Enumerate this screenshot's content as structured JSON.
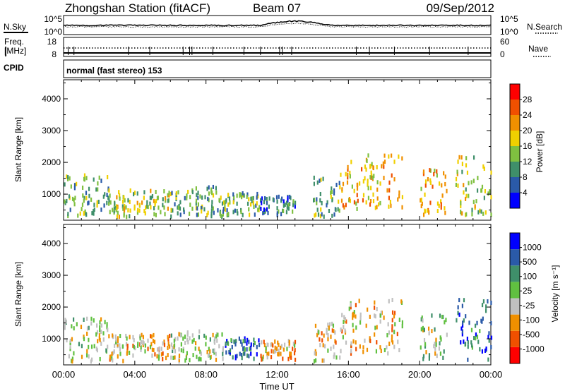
{
  "header": {
    "station": "Zhongshan Station (fitACF)",
    "beam": "Beam 07",
    "date": "09/Sep/2012"
  },
  "noise_panel": {
    "left_label": "N.Sky",
    "right_label": "N.Search",
    "left_ticks": [
      "10^5",
      "10^0"
    ],
    "right_ticks": [
      "10^5",
      "10^0"
    ]
  },
  "freq_panel": {
    "left_label_1": "Freq.",
    "left_label_2": "[MHz]",
    "right_label": "Nave",
    "left_ticks": [
      "18",
      "8"
    ],
    "right_ticks": [
      "60",
      "0"
    ]
  },
  "cpid": {
    "label": "CPID",
    "text": "normal (fast stereo) 153"
  },
  "xaxis": {
    "label": "Time UT",
    "ticks": [
      "00:00",
      "04:00",
      "08:00",
      "12:00",
      "16:00",
      "20:00",
      "00:00"
    ]
  },
  "power_panel": {
    "ylabel": "Slant Range [km]",
    "yticks": [
      "4000",
      "3000",
      "2000",
      "1000"
    ],
    "colorbar_label": "Power [dB]",
    "colorbar_ticks": [
      "28",
      "24",
      "20",
      "16",
      "12",
      "8",
      "4"
    ]
  },
  "velocity_panel": {
    "ylabel": "Slant Range [km]",
    "yticks": [
      "4000",
      "3000",
      "2000",
      "1000"
    ],
    "colorbar_label": "Velocity [m s⁻¹]",
    "colorbar_ticks": [
      "1000",
      "500",
      "100",
      "25",
      "-25",
      "-100",
      "-500",
      "-1000"
    ]
  },
  "chart_data": [
    {
      "type": "heatmap",
      "title": "Power",
      "xlabel": "Time UT",
      "ylabel": "Slant Range [km]",
      "xlim": [
        0,
        24
      ],
      "ylim": [
        180,
        4600
      ],
      "colorbar": {
        "label": "Power [dB]",
        "range": [
          0,
          32
        ]
      },
      "colors": [
        "#0000ff",
        "#2a5aa8",
        "#3f8f6a",
        "#7fc040",
        "#f0d000",
        "#f09000",
        "#f05000",
        "#ff0000"
      ],
      "scatter_regions": [
        {
          "t": [
            0.0,
            2.5
          ],
          "r": [
            350,
            1700
          ],
          "power": 14
        },
        {
          "t": [
            2.5,
            6.0
          ],
          "r": [
            350,
            1200
          ],
          "power": 16
        },
        {
          "t": [
            6.0,
            9.0
          ],
          "r": [
            350,
            1300
          ],
          "power": 14
        },
        {
          "t": [
            9.0,
            11.0
          ],
          "r": [
            400,
            1100
          ],
          "power": 12
        },
        {
          "t": [
            11.0,
            13.0
          ],
          "r": [
            400,
            1000
          ],
          "power": 8
        },
        {
          "t": [
            14.0,
            15.5
          ],
          "r": [
            350,
            1600
          ],
          "power": 14
        },
        {
          "t": [
            15.5,
            19.0
          ],
          "r": [
            600,
            2300
          ],
          "power": 22
        },
        {
          "t": [
            20.0,
            21.5
          ],
          "r": [
            400,
            1900
          ],
          "power": 20
        },
        {
          "t": [
            22.0,
            24.0
          ],
          "r": [
            400,
            2300
          ],
          "power": 16
        }
      ]
    },
    {
      "type": "heatmap",
      "title": "Velocity",
      "xlabel": "Time UT",
      "ylabel": "Slant Range [km]",
      "xlim": [
        0,
        24
      ],
      "ylim": [
        180,
        4600
      ],
      "colorbar": {
        "label": "Velocity [m s⁻¹]",
        "range": [
          -1000,
          1000
        ]
      },
      "colors": [
        "#ff0000",
        "#f05000",
        "#f09000",
        "#c0c0c0",
        "#60c040",
        "#3f8f6a",
        "#2a5aa8",
        "#0000ff"
      ],
      "scatter_regions": [
        {
          "t": [
            0.0,
            2.5
          ],
          "r": [
            350,
            1700
          ],
          "velocity": 100
        },
        {
          "t": [
            2.5,
            6.0
          ],
          "r": [
            350,
            1200
          ],
          "velocity": -100
        },
        {
          "t": [
            6.0,
            9.0
          ],
          "r": [
            350,
            1300
          ],
          "velocity": 100
        },
        {
          "t": [
            9.0,
            11.0
          ],
          "r": [
            400,
            1100
          ],
          "velocity": 500
        },
        {
          "t": [
            11.0,
            13.0
          ],
          "r": [
            400,
            1000
          ],
          "velocity": -100
        },
        {
          "t": [
            14.0,
            15.5
          ],
          "r": [
            350,
            1600
          ],
          "velocity": -100
        },
        {
          "t": [
            15.5,
            19.0
          ],
          "r": [
            600,
            2300
          ],
          "velocity": -100
        },
        {
          "t": [
            20.0,
            21.5
          ],
          "r": [
            400,
            1900
          ],
          "velocity": 100
        },
        {
          "t": [
            22.0,
            24.0
          ],
          "r": [
            400,
            2300
          ],
          "velocity": 500
        }
      ]
    }
  ]
}
